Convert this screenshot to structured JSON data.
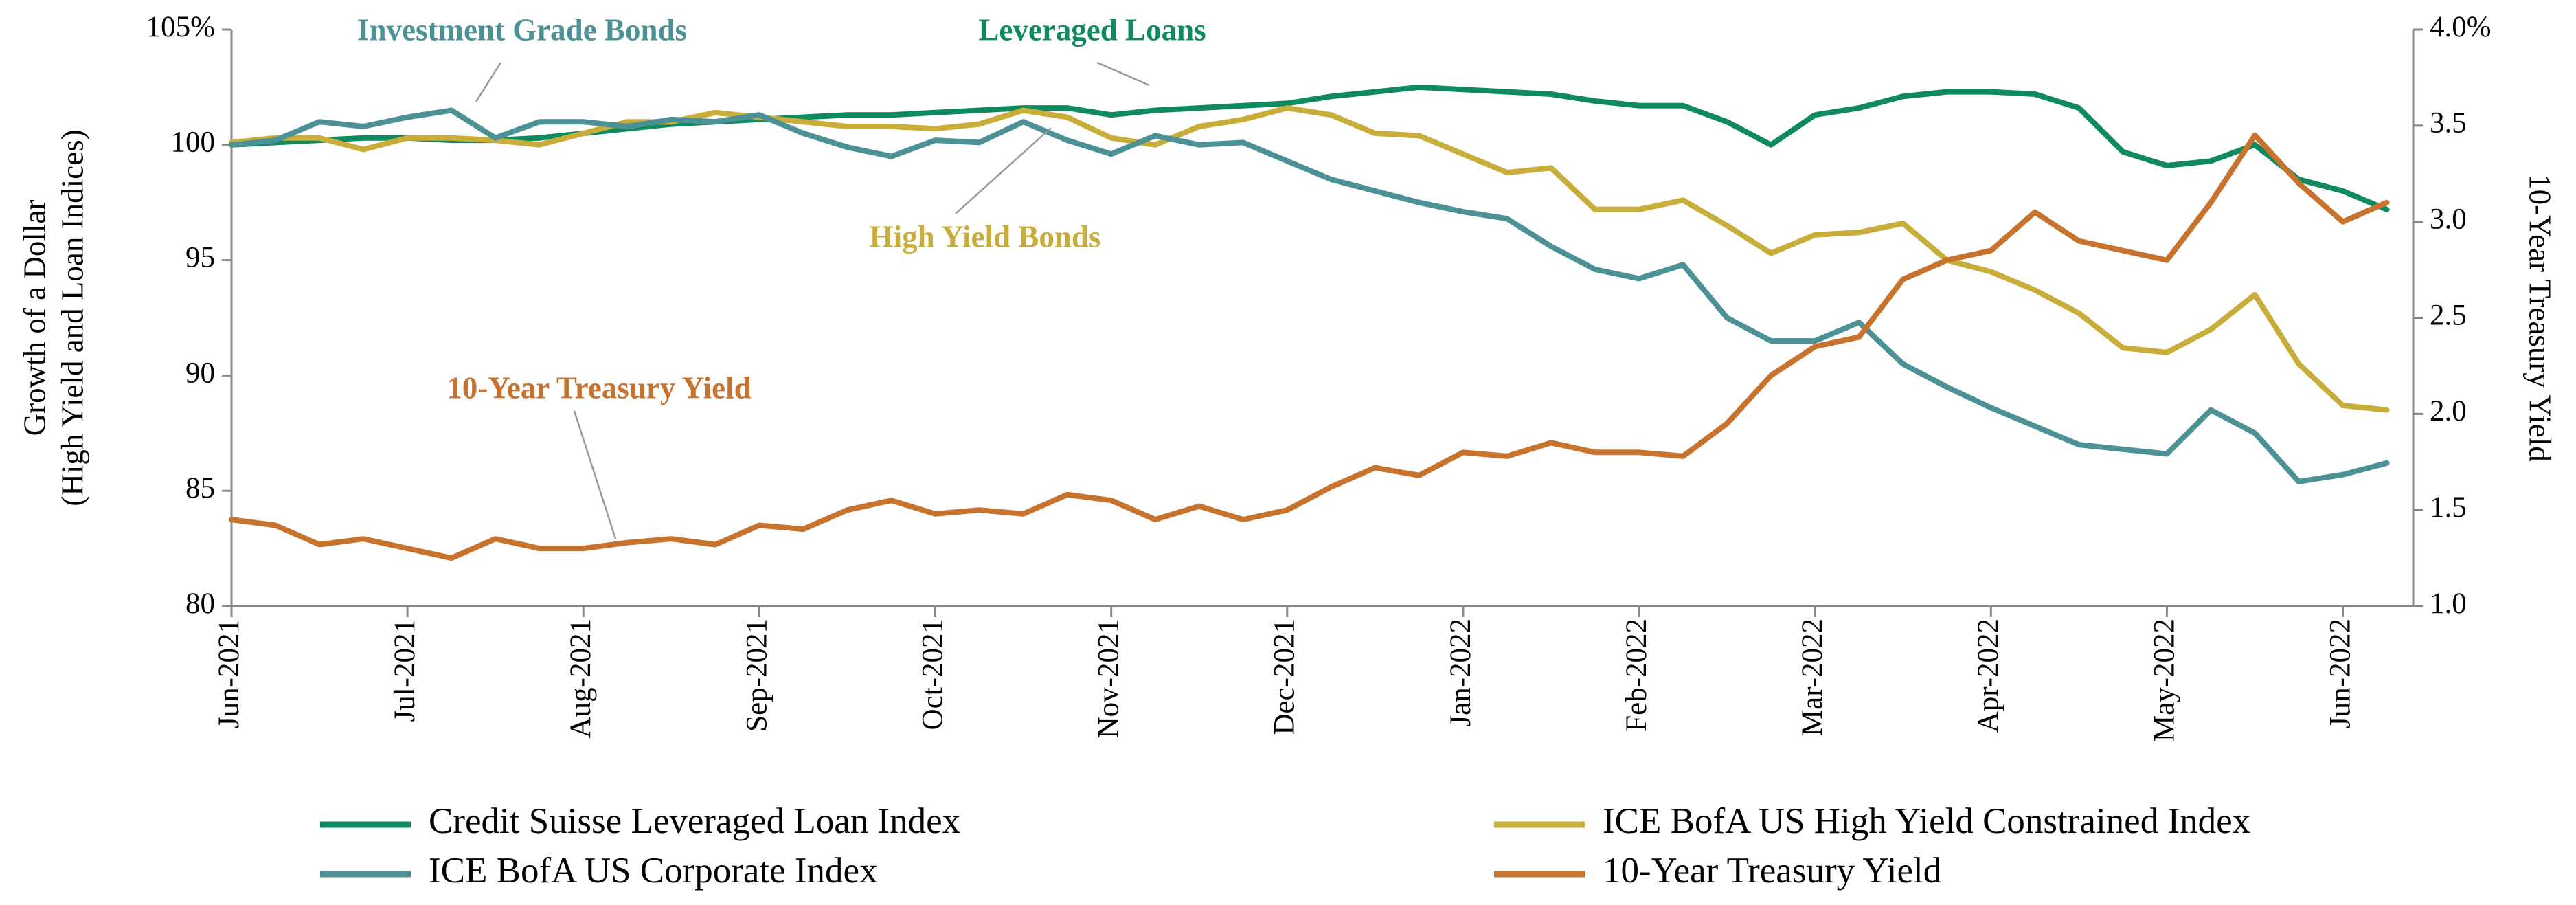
{
  "chart_data": {
    "type": "line",
    "y_label": [
      "Growth of a Dollar",
      "(High Yield and Loan Indices)"
    ],
    "y2_label": "10-Year Treasury Yield",
    "x": [
      0,
      0.25,
      0.5,
      0.75,
      1,
      1.25,
      1.5,
      1.75,
      2,
      2.25,
      2.5,
      2.75,
      3,
      3.25,
      3.5,
      3.75,
      4,
      4.25,
      4.5,
      4.75,
      5,
      5.25,
      5.5,
      5.75,
      6,
      6.25,
      6.5,
      6.75,
      7,
      7.25,
      7.5,
      7.75,
      8,
      8.25,
      8.5,
      8.75,
      9,
      9.25,
      9.5,
      9.75,
      10,
      10.25,
      10.5,
      10.75,
      11,
      11.25,
      11.5,
      11.75,
      12,
      12.25
    ],
    "xlim": [
      0,
      12.4
    ],
    "xticks": [
      {
        "value": 0,
        "label": "Jun-2021"
      },
      {
        "value": 1,
        "label": "Jul-2021"
      },
      {
        "value": 2,
        "label": "Aug-2021"
      },
      {
        "value": 3,
        "label": "Sep-2021"
      },
      {
        "value": 4,
        "label": "Oct-2021"
      },
      {
        "value": 5,
        "label": "Nov-2021"
      },
      {
        "value": 6,
        "label": "Dec-2021"
      },
      {
        "value": 7,
        "label": "Jan-2022"
      },
      {
        "value": 8,
        "label": "Feb-2022"
      },
      {
        "value": 9,
        "label": "Mar-2022"
      },
      {
        "value": 10,
        "label": "Apr-2022"
      },
      {
        "value": 11,
        "label": "May-2022"
      },
      {
        "value": 12,
        "label": "Jun-2022"
      }
    ],
    "ylim": [
      80,
      105
    ],
    "yticks": [
      80,
      85,
      90,
      95,
      100,
      {
        "value": 105,
        "label": "105%"
      }
    ],
    "y2lim": [
      1,
      4
    ],
    "y2ticks": [
      {
        "value": 1,
        "label": "1.0"
      },
      1.5,
      {
        "value": 2,
        "label": "2.0"
      },
      2.5,
      {
        "value": 3,
        "label": "3.0"
      },
      3.5,
      {
        "value": 4,
        "label": "4.0%"
      }
    ],
    "series": [
      {
        "name": "Credit Suisse Leveraged Loan Index",
        "color": "#0f8a5f",
        "values": [
          100.0,
          100.1,
          100.2,
          100.3,
          100.3,
          100.2,
          100.2,
          100.3,
          100.5,
          100.7,
          100.9,
          101.0,
          101.1,
          101.2,
          101.3,
          101.3,
          101.4,
          101.5,
          101.6,
          101.6,
          101.3,
          101.5,
          101.6,
          101.7,
          101.8,
          102.1,
          102.3,
          102.5,
          102.4,
          102.3,
          102.2,
          101.9,
          101.7,
          101.7,
          101.0,
          100.0,
          101.3,
          101.6,
          102.1,
          102.3,
          102.3,
          102.2,
          101.6,
          99.7,
          99.1,
          99.3,
          100.0,
          98.5,
          98.0,
          97.2
        ]
      },
      {
        "name": "ICE BofA US High Yield Constrained Index",
        "color": "#c9ad3a",
        "values": [
          100.1,
          100.3,
          100.3,
          99.8,
          100.3,
          100.3,
          100.2,
          100.0,
          100.5,
          101.0,
          101.0,
          101.4,
          101.2,
          101.0,
          100.8,
          100.8,
          100.7,
          100.9,
          101.5,
          101.2,
          100.3,
          100.0,
          100.8,
          101.1,
          101.6,
          101.3,
          100.5,
          100.4,
          99.6,
          98.8,
          99.0,
          97.2,
          97.2,
          97.6,
          96.5,
          95.3,
          96.1,
          96.2,
          96.6,
          95.0,
          94.5,
          93.7,
          92.7,
          91.2,
          91.0,
          92.0,
          93.5,
          90.5,
          88.7,
          88.5
        ]
      },
      {
        "name": "ICE BofA US Corporate Index",
        "color": "#4b9196",
        "values": [
          100.0,
          100.2,
          101.0,
          100.8,
          101.2,
          101.5,
          100.3,
          101.0,
          101.0,
          100.8,
          101.1,
          101.0,
          101.3,
          100.5,
          99.9,
          99.5,
          100.2,
          100.1,
          101.0,
          100.2,
          99.6,
          100.4,
          100.0,
          100.1,
          99.3,
          98.5,
          98.0,
          97.5,
          97.1,
          96.8,
          95.6,
          94.6,
          94.2,
          94.8,
          92.5,
          91.5,
          91.5,
          92.3,
          90.5,
          89.5,
          88.6,
          87.8,
          87.0,
          86.8,
          86.6,
          88.5,
          87.5,
          85.4,
          85.7,
          86.2
        ]
      },
      {
        "name": "10-Year Treasury Yield",
        "color": "#c8732d",
        "axis": "y2",
        "values": [
          1.45,
          1.42,
          1.32,
          1.35,
          1.3,
          1.25,
          1.35,
          1.3,
          1.3,
          1.33,
          1.35,
          1.32,
          1.42,
          1.4,
          1.5,
          1.55,
          1.48,
          1.5,
          1.48,
          1.58,
          1.55,
          1.45,
          1.52,
          1.45,
          1.5,
          1.62,
          1.72,
          1.68,
          1.8,
          1.78,
          1.85,
          1.8,
          1.8,
          1.78,
          1.95,
          2.2,
          2.35,
          2.4,
          2.7,
          2.8,
          2.85,
          3.05,
          2.9,
          2.85,
          2.8,
          3.1,
          3.45,
          3.2,
          3.0,
          3.1
        ]
      }
    ],
    "annotations": [
      {
        "text": "Investment Grade Bonds",
        "color": "#4b9196"
      },
      {
        "text": "Leveraged Loans",
        "color": "#0f8a5f"
      },
      {
        "text": "High Yield Bonds",
        "color": "#c9ad3a"
      },
      {
        "text": "10-Year Treasury Yield",
        "color": "#c8732d"
      }
    ]
  }
}
